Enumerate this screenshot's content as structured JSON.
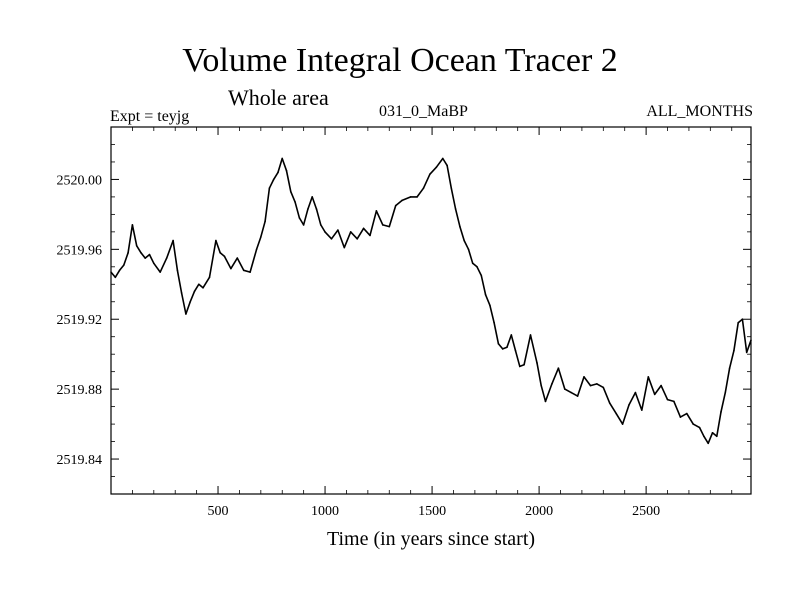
{
  "chart_data": {
    "type": "line",
    "title": "Volume Integral Ocean Tracer 2",
    "subtitle": "Whole area",
    "annotations": {
      "experiment": "Expt = teyjg",
      "run": "031_0_MaBP",
      "months": "ALL_MONTHS"
    },
    "xlabel": "Time (in years since start)",
    "ylabel": "",
    "xlim": [
      0,
      2990
    ],
    "ylim": [
      2519.82,
      2520.03
    ],
    "x_ticks": [
      500,
      1000,
      1500,
      2000,
      2500
    ],
    "x_tick_labels": [
      "500",
      "1000",
      "1500",
      "2000",
      "2500"
    ],
    "y_ticks": [
      2519.84,
      2519.88,
      2519.92,
      2519.96,
      2520.0
    ],
    "y_tick_labels": [
      "2519.84",
      "2519.88",
      "2519.92",
      "2519.96",
      "2520.00"
    ],
    "grid": false,
    "line_color": "#000000",
    "series": [
      {
        "x": [
          0,
          20,
          40,
          60,
          80,
          100,
          120,
          140,
          160,
          180,
          200,
          230,
          260,
          290,
          310,
          330,
          350,
          370,
          390,
          410,
          430,
          460,
          490,
          510,
          530,
          560,
          590,
          620,
          650,
          680,
          700,
          720,
          740,
          760,
          780,
          800,
          820,
          840,
          860,
          880,
          900,
          920,
          940,
          960,
          980,
          1000,
          1030,
          1060,
          1090,
          1120,
          1150,
          1180,
          1210,
          1240,
          1270,
          1300,
          1330,
          1360,
          1400,
          1430,
          1460,
          1490,
          1520,
          1550,
          1570,
          1590,
          1610,
          1630,
          1650,
          1670,
          1690,
          1710,
          1730,
          1750,
          1770,
          1790,
          1810,
          1830,
          1850,
          1870,
          1890,
          1910,
          1930,
          1960,
          1990,
          2010,
          2030,
          2060,
          2090,
          2120,
          2150,
          2180,
          2210,
          2240,
          2270,
          2300,
          2330,
          2360,
          2390,
          2420,
          2450,
          2480,
          2510,
          2540,
          2570,
          2600,
          2630,
          2660,
          2690,
          2720,
          2750,
          2770,
          2790,
          2810,
          2830,
          2850,
          2870,
          2890,
          2910,
          2930,
          2950,
          2970,
          2990
        ],
        "y": [
          2519.947,
          2519.944,
          2519.948,
          2519.951,
          2519.958,
          2519.974,
          2519.962,
          2519.958,
          2519.955,
          2519.957,
          2519.952,
          2519.947,
          2519.955,
          2519.965,
          2519.948,
          2519.935,
          2519.923,
          2519.93,
          2519.936,
          2519.94,
          2519.938,
          2519.944,
          2519.965,
          2519.958,
          2519.956,
          2519.949,
          2519.955,
          2519.948,
          2519.947,
          2519.96,
          2519.967,
          2519.976,
          2519.995,
          2520.0,
          2520.004,
          2520.012,
          2520.005,
          2519.993,
          2519.987,
          2519.978,
          2519.974,
          2519.983,
          2519.99,
          2519.983,
          2519.974,
          2519.97,
          2519.966,
          2519.971,
          2519.961,
          2519.97,
          2519.966,
          2519.972,
          2519.968,
          2519.982,
          2519.974,
          2519.973,
          2519.985,
          2519.988,
          2519.99,
          2519.99,
          2519.995,
          2520.003,
          2520.007,
          2520.012,
          2520.008,
          2519.995,
          2519.983,
          2519.973,
          2519.965,
          2519.96,
          2519.952,
          2519.95,
          2519.945,
          2519.934,
          2519.928,
          2519.918,
          2519.906,
          2519.903,
          2519.904,
          2519.911,
          2519.902,
          2519.893,
          2519.894,
          2519.911,
          2519.895,
          2519.882,
          2519.873,
          2519.883,
          2519.892,
          2519.88,
          2519.878,
          2519.876,
          2519.887,
          2519.882,
          2519.883,
          2519.881,
          2519.872,
          2519.866,
          2519.86,
          2519.871,
          2519.878,
          2519.868,
          2519.887,
          2519.877,
          2519.882,
          2519.874,
          2519.873,
          2519.864,
          2519.866,
          2519.86,
          2519.858,
          2519.853,
          2519.849,
          2519.855,
          2519.853,
          2519.867,
          2519.878,
          2519.892,
          2519.902,
          2519.918,
          2519.92,
          2519.901,
          2519.908
        ]
      }
    ]
  }
}
